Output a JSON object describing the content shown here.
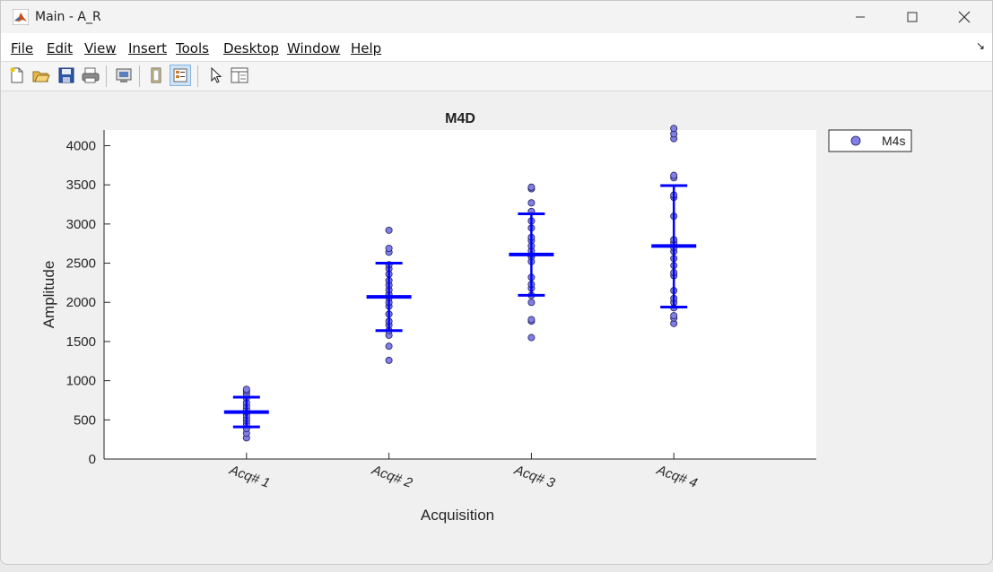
{
  "window": {
    "title": "Main - A_R"
  },
  "menu": {
    "items": [
      {
        "label": "File"
      },
      {
        "label": "Edit"
      },
      {
        "label": "View"
      },
      {
        "label": "Insert"
      },
      {
        "label": "Tools"
      },
      {
        "label": "Desktop"
      },
      {
        "label": "Window"
      },
      {
        "label": "Help"
      }
    ]
  },
  "toolbar": {
    "icons": [
      "new-figure-icon",
      "open-file-icon",
      "save-icon",
      "print-icon",
      "print-preview-icon",
      "hide-plot-tools-icon",
      "show-plot-tools-icon",
      "edit-plot-icon",
      "property-inspector-icon"
    ]
  },
  "colors": {
    "marker_fill": "#7f7fe6",
    "marker_edge": "#1f1f5f",
    "errorbar": "#0000ff"
  },
  "chart_data": {
    "type": "scatter",
    "title": "M4D",
    "xlabel": "Acquisition",
    "ylabel": "Amplitude",
    "categories": [
      "Acq# 1",
      "Acq# 2",
      "Acq# 3",
      "Acq# 4"
    ],
    "xlim": [
      0,
      5
    ],
    "ylim": [
      0,
      4200
    ],
    "yticks": [
      0,
      500,
      1000,
      1500,
      2000,
      2500,
      3000,
      3500,
      4000
    ],
    "grid": false,
    "legend": {
      "entries": [
        "M4s"
      ],
      "placement": "outside-top-right"
    },
    "series": [
      {
        "name": "M4s",
        "points": [
          {
            "x": 1,
            "y": [
              270,
              330,
              390,
              450,
              490,
              520,
              560,
              600,
              640,
              680,
              720,
              780,
              830,
              870,
              890
            ]
          },
          {
            "x": 2,
            "y": [
              1260,
              1440,
              1580,
              1640,
              1710,
              1760,
              1850,
              1950,
              2000,
              2060,
              2100,
              2160,
              2220,
              2280,
              2360,
              2430,
              2480,
              2640,
              2690,
              2920
            ]
          },
          {
            "x": 3,
            "y": [
              1550,
              1760,
              1780,
              2000,
              2090,
              2180,
              2230,
              2320,
              2520,
              2580,
              2610,
              2660,
              2720,
              2790,
              2830,
              2950,
              3040,
              3160,
              3270,
              3450,
              3470
            ]
          },
          {
            "x": 4,
            "y": [
              1730,
              1800,
              1830,
              1930,
              2000,
              2050,
              2150,
              2340,
              2380,
              2470,
              2560,
              2650,
              2700,
              2760,
              2800,
              3100,
              3340,
              3370,
              3590,
              3620,
              4090,
              4150,
              4220
            ]
          }
        ]
      }
    ],
    "errorbars": [
      {
        "x": 1,
        "mean": 600,
        "lower": 410,
        "upper": 790
      },
      {
        "x": 2,
        "mean": 2070,
        "lower": 1640,
        "upper": 2500
      },
      {
        "x": 3,
        "mean": 2610,
        "lower": 2090,
        "upper": 3130
      },
      {
        "x": 4,
        "mean": 2720,
        "lower": 1940,
        "upper": 3490
      }
    ]
  }
}
